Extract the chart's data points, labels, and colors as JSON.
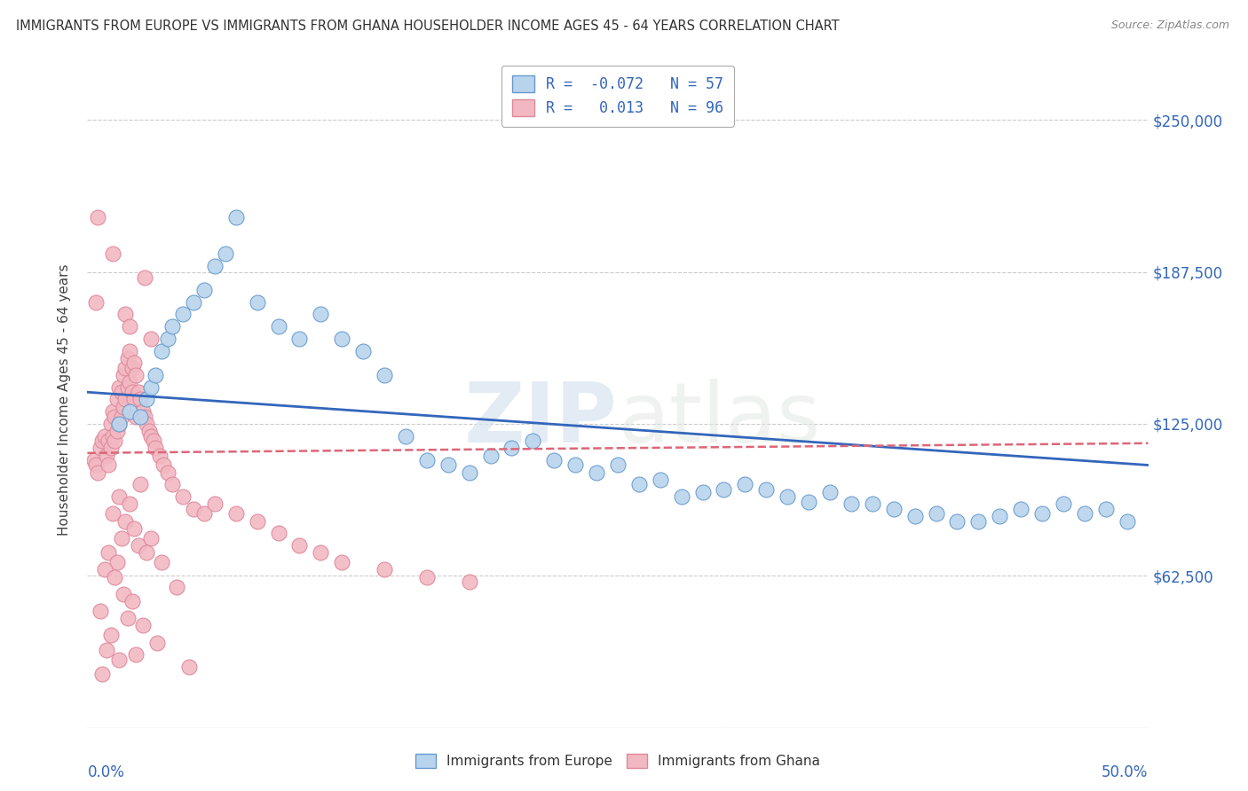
{
  "title": "IMMIGRANTS FROM EUROPE VS IMMIGRANTS FROM GHANA HOUSEHOLDER INCOME AGES 45 - 64 YEARS CORRELATION CHART",
  "source": "Source: ZipAtlas.com",
  "ylabel": "Householder Income Ages 45 - 64 years",
  "y_ticks": [
    0,
    62500,
    125000,
    187500,
    250000
  ],
  "y_tick_labels": [
    "",
    "$62,500",
    "$125,000",
    "$187,500",
    "$250,000"
  ],
  "x_min": 0.0,
  "x_max": 50.0,
  "y_min": 0,
  "y_max": 270000,
  "europe_color": "#b8d4ed",
  "europe_edge": "#6699cc",
  "ghana_color": "#f2b8c2",
  "ghana_edge": "#dd8899",
  "europe_line_color": "#3366bb",
  "ghana_line_color": "#dd6677",
  "watermark_color": "#e0e8f0",
  "legend_R_europe": "-0.072",
  "legend_N_europe": "57",
  "legend_R_ghana": "0.013",
  "legend_N_ghana": "96",
  "background_color": "#ffffff",
  "grid_color": "#cccccc",
  "europe_scatter_x": [
    1.5,
    2.0,
    2.5,
    2.8,
    3.0,
    3.2,
    3.5,
    3.8,
    4.0,
    4.5,
    5.0,
    5.5,
    6.0,
    7.0,
    8.0,
    9.0,
    10.0,
    11.0,
    12.0,
    13.0,
    14.0,
    15.0,
    16.0,
    17.0,
    18.0,
    19.0,
    20.0,
    22.0,
    24.0,
    25.0,
    26.0,
    28.0,
    29.0,
    30.0,
    31.0,
    33.0,
    35.0,
    37.0,
    38.0,
    40.0,
    42.0,
    43.0,
    44.0,
    45.0,
    46.0,
    48.0,
    23.0,
    27.0,
    32.0,
    36.0,
    41.0,
    34.0,
    39.0,
    47.0,
    21.0,
    6.5,
    49.0
  ],
  "europe_scatter_y": [
    125000,
    130000,
    128000,
    135000,
    140000,
    145000,
    155000,
    160000,
    165000,
    170000,
    175000,
    180000,
    190000,
    210000,
    175000,
    165000,
    160000,
    170000,
    160000,
    155000,
    145000,
    120000,
    110000,
    108000,
    105000,
    112000,
    115000,
    110000,
    105000,
    108000,
    100000,
    95000,
    97000,
    98000,
    100000,
    95000,
    97000,
    92000,
    90000,
    88000,
    85000,
    87000,
    90000,
    88000,
    92000,
    90000,
    108000,
    102000,
    98000,
    92000,
    85000,
    93000,
    87000,
    88000,
    118000,
    195000,
    85000
  ],
  "ghana_scatter_x": [
    0.3,
    0.4,
    0.5,
    0.6,
    0.7,
    0.8,
    0.9,
    1.0,
    1.0,
    1.1,
    1.1,
    1.2,
    1.2,
    1.3,
    1.3,
    1.4,
    1.4,
    1.5,
    1.5,
    1.6,
    1.6,
    1.7,
    1.7,
    1.8,
    1.8,
    1.9,
    1.9,
    2.0,
    2.0,
    2.1,
    2.1,
    2.2,
    2.2,
    2.3,
    2.3,
    2.4,
    2.5,
    2.6,
    2.7,
    2.8,
    2.9,
    3.0,
    3.1,
    3.2,
    3.4,
    3.6,
    3.8,
    4.0,
    4.5,
    5.0,
    5.5,
    6.0,
    7.0,
    8.0,
    9.0,
    10.0,
    11.0,
    12.0,
    14.0,
    16.0,
    18.0,
    2.5,
    1.5,
    2.0,
    1.2,
    1.8,
    2.2,
    1.6,
    2.4,
    1.0,
    1.4,
    3.0,
    2.8,
    3.5,
    0.8,
    1.3,
    4.2,
    1.7,
    2.1,
    0.6,
    1.9,
    2.6,
    1.1,
    3.3,
    0.9,
    2.3,
    1.5,
    4.8,
    0.7,
    0.5,
    1.2,
    2.7,
    0.4,
    1.8,
    2.0,
    3.0
  ],
  "ghana_scatter_y": [
    110000,
    108000,
    105000,
    115000,
    118000,
    120000,
    112000,
    118000,
    108000,
    125000,
    115000,
    130000,
    120000,
    128000,
    118000,
    135000,
    122000,
    140000,
    125000,
    138000,
    128000,
    145000,
    132000,
    148000,
    135000,
    152000,
    140000,
    155000,
    142000,
    148000,
    138000,
    150000,
    135000,
    145000,
    128000,
    138000,
    135000,
    130000,
    128000,
    125000,
    122000,
    120000,
    118000,
    115000,
    112000,
    108000,
    105000,
    100000,
    95000,
    90000,
    88000,
    92000,
    88000,
    85000,
    80000,
    75000,
    72000,
    68000,
    65000,
    62000,
    60000,
    100000,
    95000,
    92000,
    88000,
    85000,
    82000,
    78000,
    75000,
    72000,
    68000,
    78000,
    72000,
    68000,
    65000,
    62000,
    58000,
    55000,
    52000,
    48000,
    45000,
    42000,
    38000,
    35000,
    32000,
    30000,
    28000,
    25000,
    22000,
    210000,
    195000,
    185000,
    175000,
    170000,
    165000,
    160000
  ]
}
